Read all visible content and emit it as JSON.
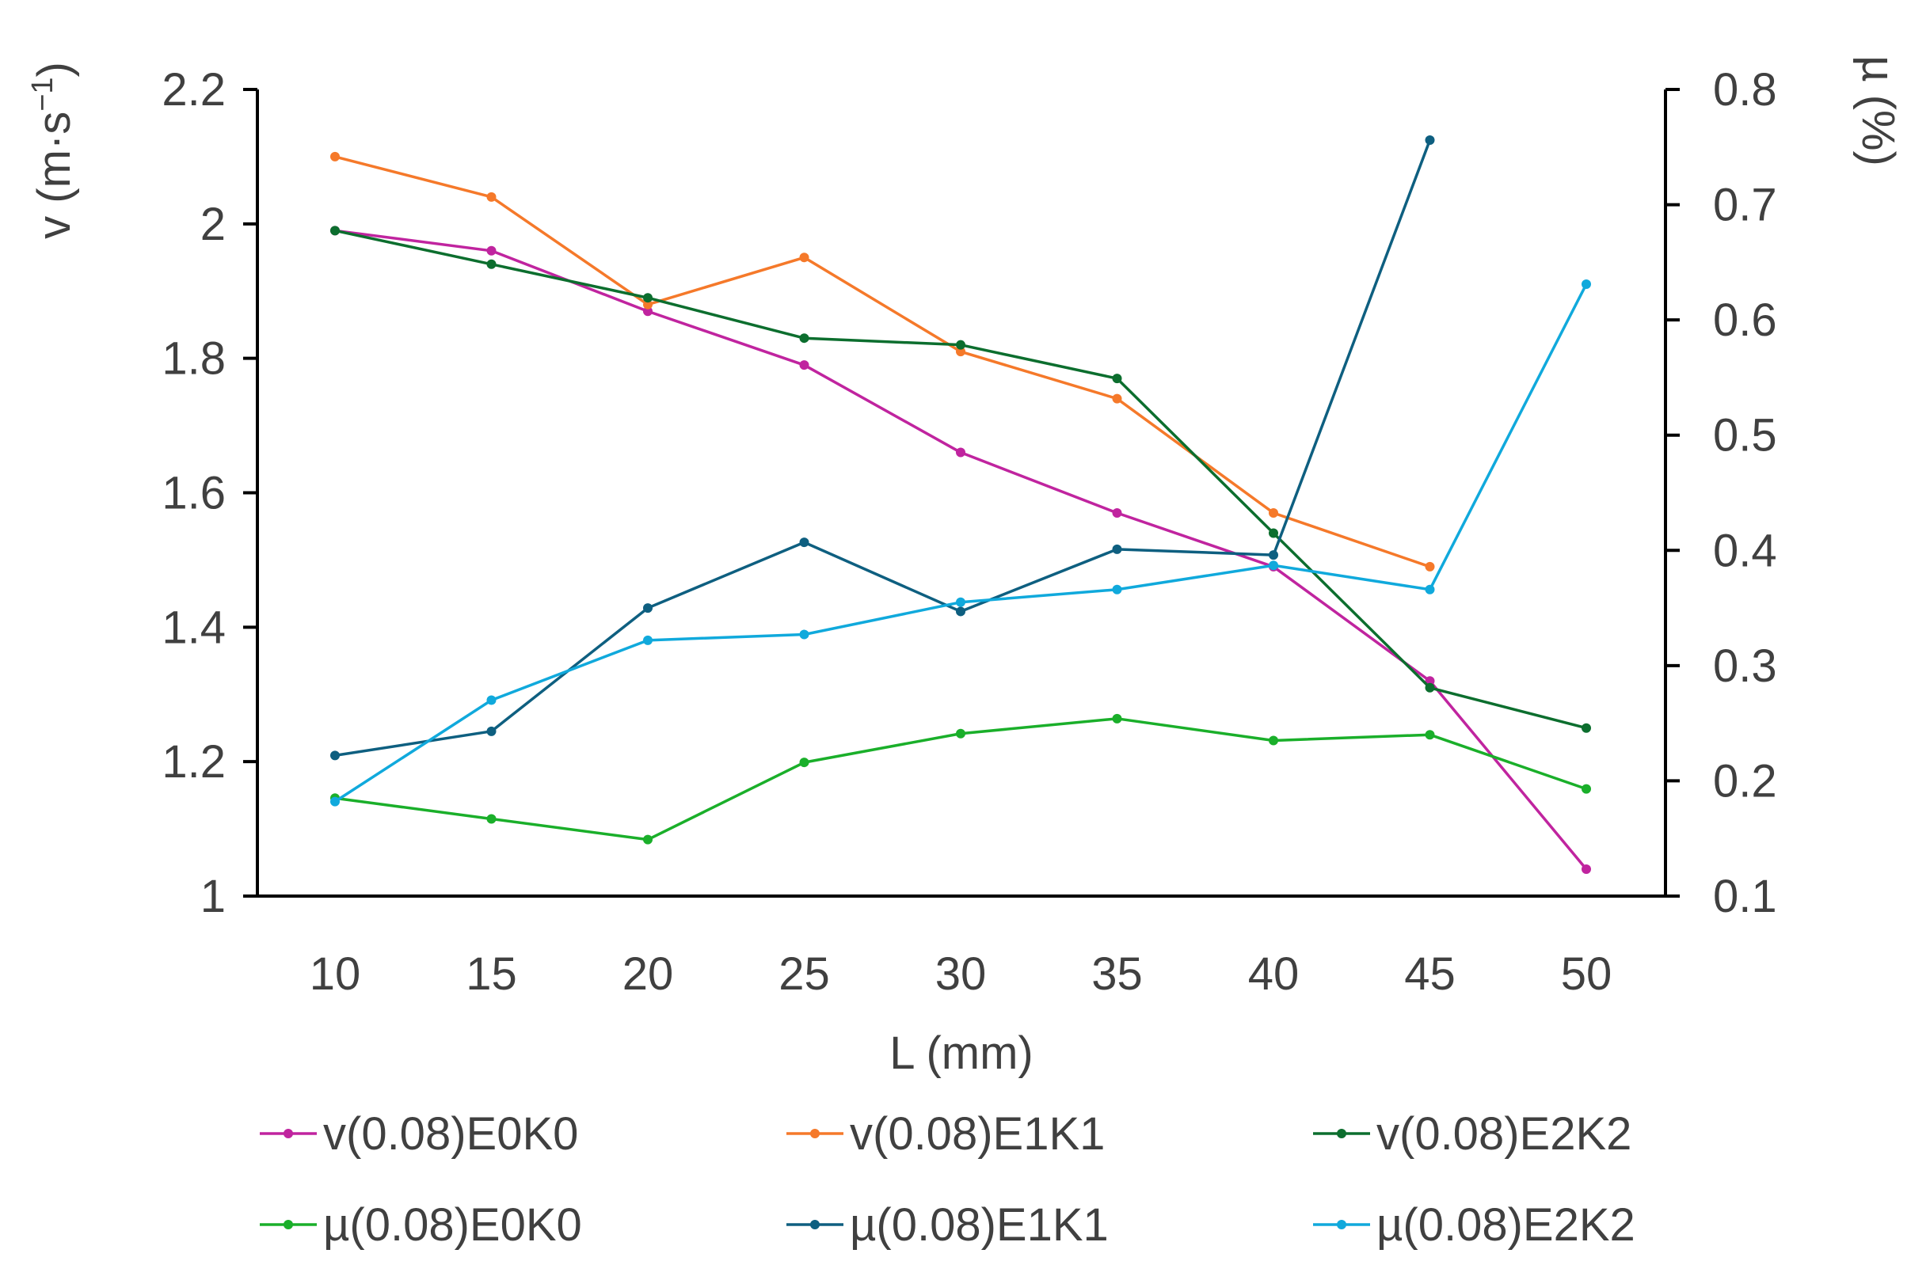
{
  "chart_data": {
    "type": "line",
    "title": "",
    "x": [
      10,
      15,
      20,
      25,
      30,
      35,
      40,
      45,
      50
    ],
    "xlabel": "L (mm)",
    "ylabel_left": "v (m·s−1)",
    "ylabel_left_base": "v (m·s",
    "ylabel_left_sup": "−1",
    "ylabel_left_close": ")",
    "ylabel_right": "µ (%)",
    "ylim_left": [
      1,
      2.2
    ],
    "ylim_right": [
      0.1,
      0.8
    ],
    "yticks_left": [
      "1",
      "1.2",
      "1.4",
      "1.6",
      "1.8",
      "2",
      "2.2"
    ],
    "yticks_right": [
      "0.1",
      "0.2",
      "0.3",
      "0.4",
      "0.5",
      "0.6",
      "0.7",
      "0.8"
    ],
    "xticks": [
      "10",
      "15",
      "20",
      "25",
      "30",
      "35",
      "40",
      "45",
      "50"
    ],
    "grid": false,
    "legend_position": "bottom",
    "series": [
      {
        "name": "v(0.08)E0K0",
        "axis": "left",
        "color": "#C0249F",
        "values": [
          1.99,
          1.96,
          1.87,
          1.79,
          1.66,
          1.57,
          1.49,
          1.32,
          1.04
        ]
      },
      {
        "name": "v(0.08)E1K1",
        "axis": "left",
        "color": "#F5792A",
        "values": [
          2.1,
          2.04,
          1.88,
          1.95,
          1.81,
          1.74,
          1.57,
          1.49,
          null
        ]
      },
      {
        "name": "v(0.08)E2K2",
        "axis": "left",
        "color": "#0C6E2E",
        "values": [
          1.99,
          1.94,
          1.89,
          1.83,
          1.82,
          1.77,
          1.54,
          1.31,
          1.25
        ]
      },
      {
        "name": "µ(0.08)E0K0",
        "axis": "right",
        "color": "#1AAF2A",
        "values": [
          0.185,
          0.167,
          0.149,
          0.216,
          0.241,
          0.254,
          0.235,
          0.24,
          0.193
        ]
      },
      {
        "name": "µ(0.08)E1K1",
        "axis": "right",
        "color": "#0E5F80",
        "values": [
          0.222,
          0.243,
          0.35,
          0.407,
          0.347,
          0.401,
          0.396,
          0.756,
          null
        ]
      },
      {
        "name": "µ(0.08)E2K2",
        "axis": "right",
        "color": "#10A9DC",
        "values": [
          0.182,
          0.27,
          0.322,
          0.327,
          0.355,
          0.366,
          0.387,
          0.366,
          0.631
        ]
      }
    ]
  }
}
